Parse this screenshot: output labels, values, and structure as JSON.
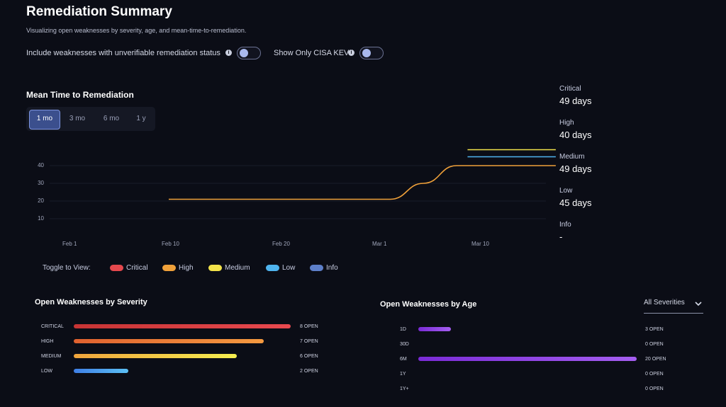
{
  "header": {
    "title": "Remediation Summary",
    "subtitle": "Visualizing open weaknesses by severity, age, and mean-time-to-remediation."
  },
  "toggles": {
    "unverifiable": {
      "label": "Include weaknesses with unverifiable remediation status",
      "on": false
    },
    "cisa_kev": {
      "label": "Show Only CISA KEV",
      "on": false
    }
  },
  "mttr": {
    "title": "Mean Time to Remediation",
    "ranges": [
      "1 mo",
      "3 mo",
      "6 mo",
      "1 y"
    ],
    "selected_range": "1 mo",
    "severities": [
      {
        "name": "Critical",
        "days": "49 days"
      },
      {
        "name": "High",
        "days": "40 days"
      },
      {
        "name": "Medium",
        "days": "49 days"
      },
      {
        "name": "Low",
        "days": "45 days"
      },
      {
        "name": "Info",
        "days": "-"
      }
    ],
    "legend_label": "Toggle to View:",
    "legend": [
      {
        "name": "Critical",
        "color": "#e5484d"
      },
      {
        "name": "High",
        "color": "#f0a13a"
      },
      {
        "name": "Medium",
        "color": "#f2e24a"
      },
      {
        "name": "Low",
        "color": "#4fb4ef"
      },
      {
        "name": "Info",
        "color": "#5d7fc9"
      }
    ]
  },
  "chart_data": {
    "type": "line",
    "x_ticks": [
      "Feb 1",
      "Feb 10",
      "Feb 20",
      "Mar 1",
      "Mar 10"
    ],
    "y_ticks": [
      10,
      20,
      30,
      40
    ],
    "ylim": [
      0,
      50
    ],
    "series": [
      {
        "name": "High",
        "color": "#f0a13a",
        "points": [
          [
            "Feb 10",
            21
          ],
          [
            "Feb 20",
            21
          ],
          [
            "Mar 2",
            21
          ],
          [
            "Mar 5",
            30
          ],
          [
            "Mar 8",
            40
          ],
          [
            "Mar 17",
            40
          ]
        ]
      },
      {
        "name": "Medium",
        "color": "#f2e24a",
        "points": [
          [
            "Mar 9",
            49
          ],
          [
            "Mar 17",
            49
          ]
        ]
      },
      {
        "name": "Low",
        "color": "#4fb4ef",
        "points": [
          [
            "Mar 9",
            45
          ],
          [
            "Mar 17",
            45
          ]
        ]
      }
    ]
  },
  "by_severity": {
    "title": "Open Weaknesses by Severity",
    "rows": [
      {
        "label": "CRITICAL",
        "count": 8,
        "open": "8 OPEN",
        "color_from": "#c73434",
        "color_to": "#e8494f"
      },
      {
        "label": "HIGH",
        "count": 7,
        "open": "7 OPEN",
        "color_from": "#e0612f",
        "color_to": "#f59a40"
      },
      {
        "label": "MEDIUM",
        "count": 6,
        "open": "6 OPEN",
        "color_from": "#f0a43c",
        "color_to": "#f5ee50"
      },
      {
        "label": "LOW",
        "count": 2,
        "open": "2 OPEN",
        "color_from": "#3f7fe6",
        "color_to": "#5cc0f5"
      }
    ],
    "max": 8
  },
  "by_age": {
    "title": "Open Weaknesses by Age",
    "filter": "All Severities",
    "rows": [
      {
        "label": "1D",
        "count": 3,
        "open": "3 OPEN"
      },
      {
        "label": "30D",
        "count": 0,
        "open": "0 OPEN"
      },
      {
        "label": "6M",
        "count": 20,
        "open": "20 OPEN"
      },
      {
        "label": "1Y",
        "count": 0,
        "open": "0 OPEN"
      },
      {
        "label": "1Y+",
        "count": 0,
        "open": "0 OPEN"
      }
    ],
    "max": 20,
    "color_from": "#7a2bd6",
    "color_to": "#a55ef0"
  }
}
